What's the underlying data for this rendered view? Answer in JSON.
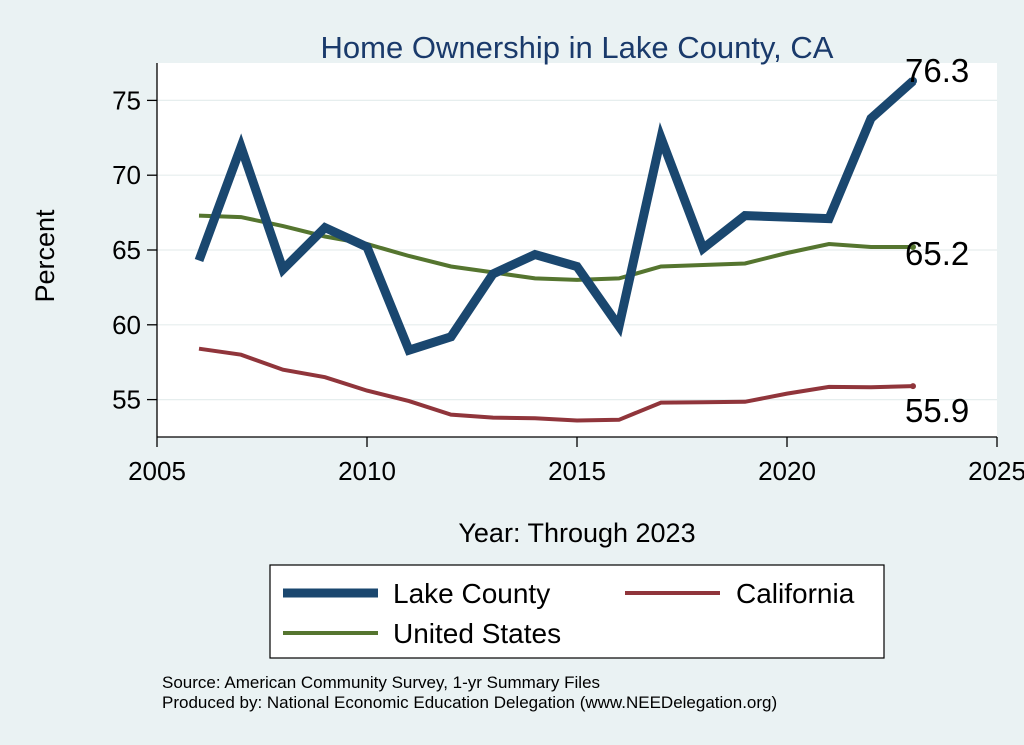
{
  "chart_data": {
    "type": "line",
    "title": "Home Ownership in Lake County, CA",
    "xlabel": "Year: Through 2023",
    "ylabel": "Percent",
    "xlim": [
      2005,
      2025
    ],
    "ylim": [
      52.5,
      77.5
    ],
    "xticks": [
      2005,
      2010,
      2015,
      2020,
      2025
    ],
    "yticks": [
      55,
      60,
      65,
      70,
      75
    ],
    "grid": true,
    "x": [
      2006,
      2007,
      2008,
      2009,
      2010,
      2011,
      2012,
      2013,
      2014,
      2015,
      2016,
      2017,
      2018,
      2019,
      2020,
      2021,
      2022,
      2023
    ],
    "series": [
      {
        "name": "Lake County",
        "color": "#1a476f",
        "values": [
          64.3,
          71.9,
          63.7,
          66.5,
          65.2,
          58.3,
          59.2,
          63.4,
          64.7,
          63.9,
          59.9,
          72.5,
          65.1,
          67.3,
          67.2,
          67.1,
          73.8,
          76.3
        ],
        "end_label": "76.3"
      },
      {
        "name": "California",
        "color": "#90353b",
        "values": [
          58.4,
          58.0,
          57.0,
          56.5,
          55.6,
          54.9,
          54.0,
          53.8,
          53.75,
          53.6,
          53.65,
          54.8,
          54.82,
          54.85,
          55.4,
          55.85,
          55.82,
          55.9
        ],
        "end_label": "55.9"
      },
      {
        "name": "United States",
        "color": "#55752f",
        "values": [
          67.3,
          67.2,
          66.6,
          65.9,
          65.4,
          64.6,
          63.9,
          63.5,
          63.1,
          63.0,
          63.1,
          63.9,
          64.0,
          64.1,
          64.8,
          65.4,
          65.2,
          65.2
        ],
        "end_label": "65.2"
      }
    ],
    "legend": {
      "position": "bottom",
      "entries": [
        "Lake County",
        "California",
        "United States"
      ]
    }
  },
  "footer": {
    "source": "Source: American Community Survey, 1-yr Summary Files",
    "produced": "Produced by: National Economic Education Delegation (www.NEEDelegation.org)"
  }
}
